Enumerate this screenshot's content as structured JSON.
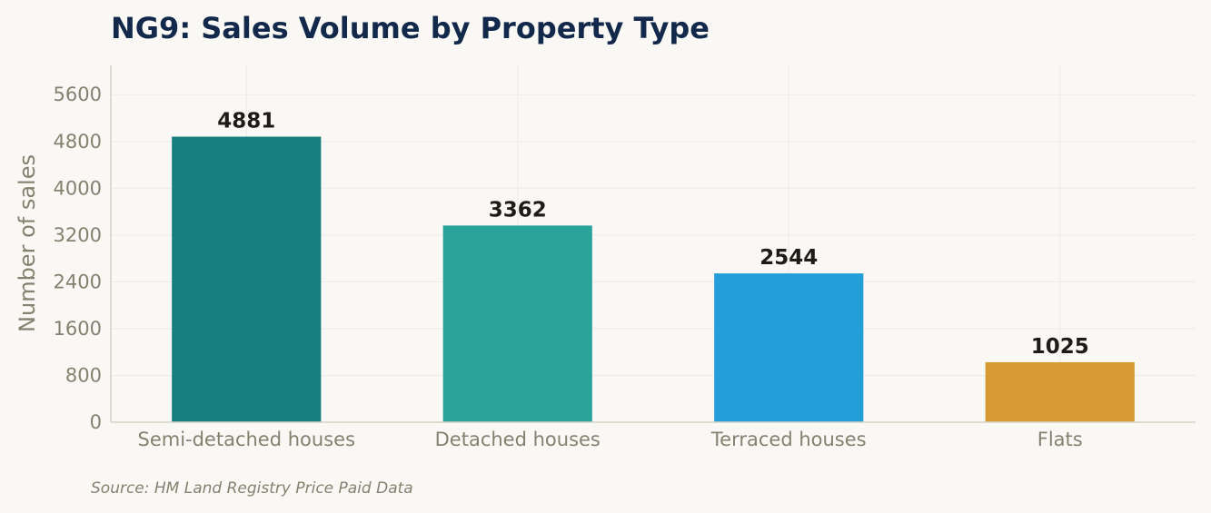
{
  "chart_data": {
    "type": "bar",
    "title": "NG9: Sales Volume by Property Type",
    "xlabel": "",
    "ylabel": "Number of sales",
    "categories": [
      "Semi-detached houses",
      "Detached houses",
      "Terraced houses",
      "Flats"
    ],
    "values": [
      4881,
      3362,
      2544,
      1025
    ],
    "colors": [
      "#167f7e",
      "#2aa39b",
      "#239ed9",
      "#d69a33"
    ],
    "ylim": [
      0,
      6100
    ],
    "yticks": [
      0,
      800,
      1600,
      2400,
      3200,
      4000,
      4800,
      5600
    ],
    "grid": true,
    "legend": "none"
  },
  "source": "Source: HM Land Registry Price Paid Data"
}
